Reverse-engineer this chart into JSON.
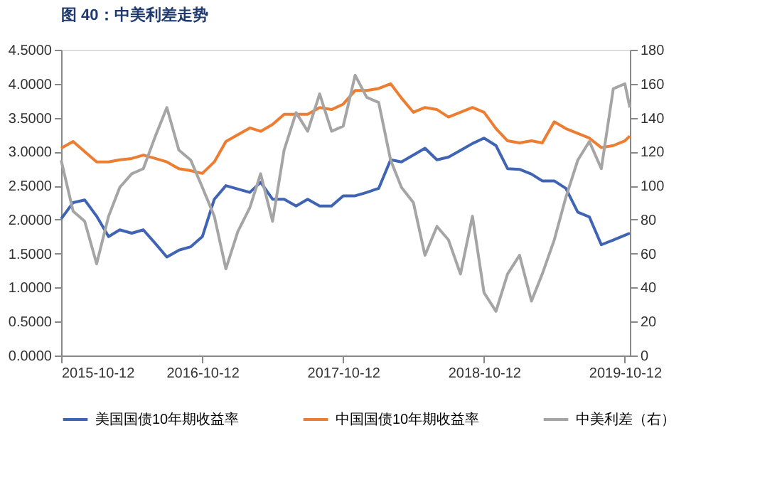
{
  "chart_data": {
    "type": "line",
    "title": "图 40：中美利差走势",
    "x": [
      "2015-10-12",
      "2015-11-12",
      "2015-12-12",
      "2016-01-12",
      "2016-02-12",
      "2016-03-12",
      "2016-04-12",
      "2016-05-12",
      "2016-06-12",
      "2016-07-12",
      "2016-08-12",
      "2016-09-12",
      "2016-10-12",
      "2016-11-12",
      "2016-12-12",
      "2017-01-12",
      "2017-02-12",
      "2017-03-12",
      "2017-04-12",
      "2017-05-12",
      "2017-06-12",
      "2017-07-12",
      "2017-08-12",
      "2017-09-12",
      "2017-10-12",
      "2017-11-12",
      "2017-12-12",
      "2018-01-12",
      "2018-02-12",
      "2018-03-12",
      "2018-04-12",
      "2018-05-12",
      "2018-06-12",
      "2018-07-12",
      "2018-08-12",
      "2018-09-12",
      "2018-10-12",
      "2018-11-12",
      "2018-12-12",
      "2019-01-12",
      "2019-02-12",
      "2019-03-12",
      "2019-04-12",
      "2019-05-12",
      "2019-06-12",
      "2019-07-12",
      "2019-08-12",
      "2019-09-12",
      "2019-10-12",
      "2019-10-25"
    ],
    "series": [
      {
        "name": "美国国债10年期收益率",
        "color": "#3f64b4",
        "axis": "y",
        "values": [
          2.01,
          2.25,
          2.29,
          2.05,
          1.75,
          1.85,
          1.8,
          1.85,
          1.65,
          1.45,
          1.55,
          1.6,
          1.75,
          2.3,
          2.5,
          2.45,
          2.4,
          2.55,
          2.3,
          2.3,
          2.2,
          2.3,
          2.2,
          2.2,
          2.35,
          2.35,
          2.4,
          2.46,
          2.88,
          2.85,
          2.95,
          3.05,
          2.88,
          2.92,
          3.02,
          3.12,
          3.2,
          3.09,
          2.75,
          2.74,
          2.67,
          2.57,
          2.57,
          2.46,
          2.11,
          2.04,
          1.63,
          1.7,
          1.77,
          1.8
        ]
      },
      {
        "name": "中国国债10年期收益率",
        "color": "#ed7d31",
        "axis": "y",
        "values": [
          3.05,
          3.15,
          3.0,
          2.85,
          2.85,
          2.88,
          2.9,
          2.95,
          2.9,
          2.85,
          2.75,
          2.72,
          2.68,
          2.85,
          3.15,
          3.25,
          3.35,
          3.3,
          3.4,
          3.55,
          3.55,
          3.55,
          3.65,
          3.62,
          3.7,
          3.9,
          3.9,
          3.93,
          4.0,
          3.79,
          3.58,
          3.65,
          3.62,
          3.51,
          3.58,
          3.65,
          3.58,
          3.34,
          3.16,
          3.13,
          3.16,
          3.13,
          3.44,
          3.34,
          3.27,
          3.2,
          3.06,
          3.09,
          3.16,
          3.23
        ]
      },
      {
        "name": "中美利差（右）",
        "color": "#a5a5a5",
        "axis": "y2",
        "values": [
          115,
          85,
          79,
          54,
          82,
          99,
          107,
          110,
          129,
          146,
          121,
          115,
          99,
          82,
          51,
          73,
          87,
          107,
          79,
          121,
          143,
          132,
          154,
          132,
          135,
          165,
          152,
          149,
          115,
          99,
          90,
          59,
          76,
          68,
          48,
          82,
          37,
          26,
          48,
          59,
          32,
          48,
          68,
          93,
          115,
          126,
          110,
          157,
          160,
          146
        ]
      }
    ],
    "xlim": [
      "2015-10-12",
      "2019-10-25"
    ],
    "xticks": [
      "2015-10-12",
      "2016-10-12",
      "2017-10-12",
      "2018-10-12",
      "2019-10-12"
    ],
    "ylim": [
      0,
      4.5
    ],
    "yticks": [
      {
        "value": 0,
        "label": "0.0000"
      },
      {
        "value": 0.5,
        "label": "0.5000"
      },
      {
        "value": 1,
        "label": "1.0000"
      },
      {
        "value": 1.5,
        "label": "1.5000"
      },
      {
        "value": 2,
        "label": "2.0000"
      },
      {
        "value": 2.5,
        "label": "2.5000"
      },
      {
        "value": 3,
        "label": "3.0000"
      },
      {
        "value": 3.5,
        "label": "3.5000"
      },
      {
        "value": 4,
        "label": "4.0000"
      },
      {
        "value": 4.5,
        "label": "4.5000"
      }
    ],
    "y2lim": [
      0,
      180
    ],
    "y2ticks": [
      0,
      20,
      40,
      60,
      80,
      100,
      120,
      140,
      160,
      180
    ],
    "grid": false,
    "legend": "bottom",
    "marker": "none",
    "line_style": "solid"
  }
}
